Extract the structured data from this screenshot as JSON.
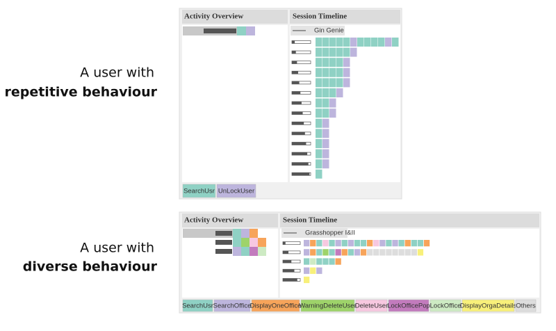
{
  "rows": [
    {
      "caption": {
        "line1": "A user with",
        "line2": "repetitive behaviour"
      },
      "activity_overview": {
        "title": "Activity Overview"
      },
      "session_timeline": {
        "title": "Session Timeline",
        "user": "Gin Genie"
      },
      "legend": [
        {
          "label": "SearchUsr",
          "color": "#8fd1c4"
        },
        {
          "label": "UnLockUser",
          "color": "#bdb5dd"
        }
      ]
    },
    {
      "caption": {
        "line1": "A user with",
        "line2": "diverse behaviour"
      },
      "activity_overview": {
        "title": "Activity Overview"
      },
      "session_timeline": {
        "title": "Session Timeline",
        "user": "Grasshopper I&II"
      },
      "legend": [
        {
          "label": "SearchUsr",
          "color": "#8fd1c4"
        },
        {
          "label": "SearchOffice",
          "color": "#bdb5dd"
        },
        {
          "label": "DisplayOneOffice",
          "color": "#f7a45a"
        },
        {
          "label": "WarningDeleteUser",
          "color": "#9ed36a"
        },
        {
          "label": "DeleteUser",
          "color": "#f7c8e0"
        },
        {
          "label": "LockOfficePop",
          "color": "#c27bbd"
        },
        {
          "label": "LockOffice",
          "color": "#cdeac3"
        },
        {
          "label": "DisplayOrgaDetails",
          "color": "#f8f07a"
        },
        {
          "label": "Others",
          "color": "#dddddd"
        }
      ]
    }
  ]
}
